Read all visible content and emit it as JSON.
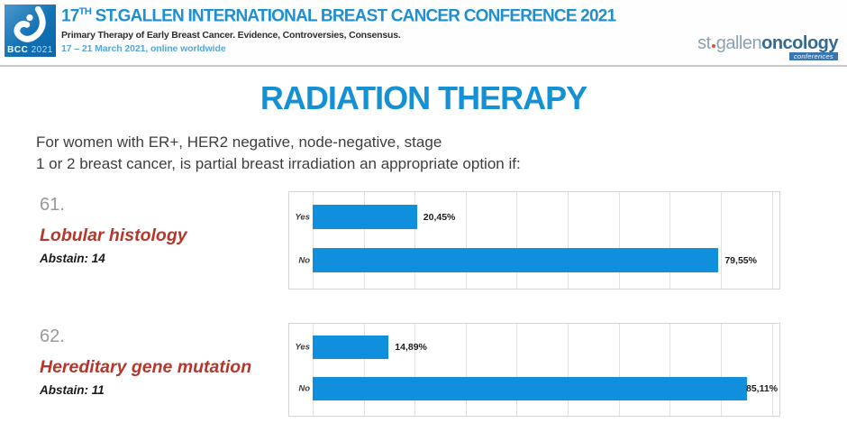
{
  "header": {
    "logo_text": "BCC",
    "logo_year": "2021",
    "title_num": "17",
    "title_sup": "TH",
    "title_rest": " ST.GALLEN INTERNATIONAL BREAST CANCER CONFERENCE 2021",
    "subtitle": "Primary Therapy of Early Breast Cancer. Evidence, Controversies, Consensus.",
    "dates": "17 – 21 March 2021, online worldwide",
    "brand_st": "st",
    "brand_gallen": "gallen",
    "brand_oncology": "oncology",
    "brand_badge": "conferences"
  },
  "slide": {
    "title": "RADIATION THERAPY",
    "question_line1": "For women with ER+, HER2 negative, node-negative, stage",
    "question_line2": "1 or 2 breast cancer, is partial breast irradiation an appropriate option if:"
  },
  "panels": [
    {
      "number": "61.",
      "topic": "Lobular histology",
      "abstain": "Abstain: 14"
    },
    {
      "number": "62.",
      "topic": "Hereditary gene mutation",
      "abstain": "Abstain: 11"
    }
  ],
  "chart_data": [
    {
      "type": "bar",
      "orientation": "horizontal",
      "title": "",
      "categories": [
        "Yes",
        "No"
      ],
      "values": [
        20.45,
        79.55
      ],
      "value_labels": [
        "20,45%",
        "79,55%"
      ],
      "xlim": [
        0,
        91.5
      ],
      "grid_step": 10,
      "grid": true,
      "legend": false
    },
    {
      "type": "bar",
      "orientation": "horizontal",
      "title": "",
      "categories": [
        "Yes",
        "No"
      ],
      "values": [
        14.89,
        85.11
      ],
      "value_labels": [
        "14,89%",
        "85,11%"
      ],
      "xlim": [
        0,
        91.5
      ],
      "grid_step": 10,
      "grid": true,
      "legend": false
    }
  ],
  "colors": {
    "bar": "#1090dc",
    "slide_title_blue": "#1490d4",
    "header_blue": "#1e8fd0",
    "date_blue": "#58a6d6",
    "topic_red": "#b5372b",
    "number_gray": "#9a9a9a",
    "grid_gray": "#e2e2e2",
    "chart_border_gray": "#d4d4d4"
  }
}
